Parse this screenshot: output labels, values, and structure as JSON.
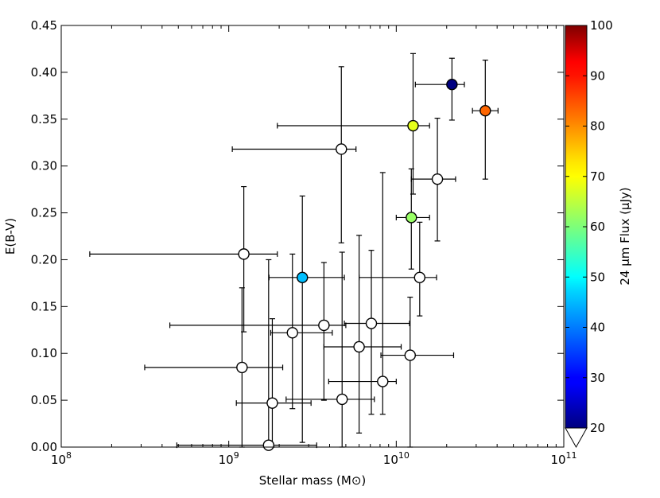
{
  "chart_data": {
    "type": "scatter",
    "title": "",
    "xlabel": "Stellar mass (M⊙)",
    "ylabel": "E(B-V)",
    "xscale": "log",
    "xlim": [
      100000000,
      100000000000
    ],
    "ylim": [
      0.0,
      0.45
    ],
    "x_ticks": [
      {
        "value": 100000000,
        "base": "10",
        "exp": "8"
      },
      {
        "value": 1000000000,
        "base": "10",
        "exp": "9"
      },
      {
        "value": 10000000000,
        "base": "10",
        "exp": "10"
      },
      {
        "value": 100000000000,
        "base": "10",
        "exp": "11"
      }
    ],
    "y_ticks": [
      "0.00",
      "0.05",
      "0.10",
      "0.15",
      "0.20",
      "0.25",
      "0.30",
      "0.35",
      "0.40",
      "0.45"
    ],
    "grid": false,
    "colorbar": {
      "label": "24 μm Flux (μJy)",
      "min": 20,
      "max": 100,
      "ticks": [
        "20",
        "30",
        "40",
        "50",
        "60",
        "70",
        "80",
        "90",
        "100"
      ],
      "colormap": "jet",
      "extend": "min"
    },
    "points": [
      {
        "x": 21500000000,
        "y": 0.387,
        "xerr": [
          13000000000,
          25500000000
        ],
        "yerr": [
          0.349,
          0.415
        ],
        "flux": 20
      },
      {
        "x": 34000000000,
        "y": 0.359,
        "xerr": [
          28500000000,
          40500000000
        ],
        "yerr": [
          0.286,
          0.413
        ],
        "flux": 82
      },
      {
        "x": 12600000000,
        "y": 0.343,
        "xerr": [
          1950000000,
          15800000000
        ],
        "yerr": [
          0.27,
          0.42
        ],
        "flux": 68
      },
      {
        "x": 4700000000,
        "y": 0.318,
        "xerr": [
          1050000000,
          5750000000
        ],
        "yerr": [
          0.218,
          0.406
        ],
        "flux": null
      },
      {
        "x": 17600000000,
        "y": 0.286,
        "xerr": [
          12300000000,
          22600000000
        ],
        "yerr": [
          0.22,
          0.351
        ],
        "flux": null
      },
      {
        "x": 12300000000,
        "y": 0.245,
        "xerr": [
          10000000000,
          15800000000
        ],
        "yerr": [
          0.19,
          0.297
        ],
        "flux": 62
      },
      {
        "x": 1230000000,
        "y": 0.206,
        "xerr": [
          148000000,
          1950000000
        ],
        "yerr": [
          0.123,
          0.278
        ],
        "flux": null
      },
      {
        "x": 2750000000,
        "y": 0.181,
        "xerr": [
          1740000000,
          4900000000
        ],
        "yerr": [
          0.005,
          0.268
        ],
        "flux": 45
      },
      {
        "x": 13800000000,
        "y": 0.181,
        "xerr": [
          6000000000,
          17400000000
        ],
        "yerr": [
          0.14,
          0.24
        ],
        "flux": null
      },
      {
        "x": 3700000000,
        "y": 0.13,
        "xerr": [
          445000000,
          5000000000
        ],
        "yerr": [
          0.05,
          0.197
        ],
        "flux": null
      },
      {
        "x": 7100000000,
        "y": 0.132,
        "xerr": [
          4900000000,
          12000000000
        ],
        "yerr": [
          0.035,
          0.21
        ],
        "flux": null
      },
      {
        "x": 2400000000,
        "y": 0.122,
        "xerr": [
          1780000000,
          4150000000
        ],
        "yerr": [
          0.041,
          0.206
        ],
        "flux": null
      },
      {
        "x": 6000000000,
        "y": 0.107,
        "xerr": [
          3700000000,
          10700000000
        ],
        "yerr": [
          0.015,
          0.226
        ],
        "flux": null
      },
      {
        "x": 12100000000,
        "y": 0.098,
        "xerr": [
          8100000000,
          22000000000
        ],
        "yerr": [
          0.0,
          0.16
        ],
        "flux": null
      },
      {
        "x": 1200000000,
        "y": 0.085,
        "xerr": [
          315000000,
          2100000000
        ],
        "yerr": [
          0.0,
          0.17
        ],
        "flux": null
      },
      {
        "x": 8300000000,
        "y": 0.07,
        "xerr": [
          3950000000,
          10000000000
        ],
        "yerr": [
          0.035,
          0.293
        ],
        "flux": null
      },
      {
        "x": 4750000000,
        "y": 0.051,
        "xerr": [
          2200000000,
          7400000000
        ],
        "yerr": [
          0.0,
          0.208
        ],
        "flux": null
      },
      {
        "x": 1820000000,
        "y": 0.047,
        "xerr": [
          1110000000,
          3100000000
        ],
        "yerr": [
          0.0,
          0.137
        ],
        "flux": null
      },
      {
        "x": 1730000000,
        "y": 0.002,
        "xerr": [
          490000000,
          3350000000
        ],
        "yerr": [
          0.0,
          0.2
        ],
        "flux": null
      }
    ]
  }
}
